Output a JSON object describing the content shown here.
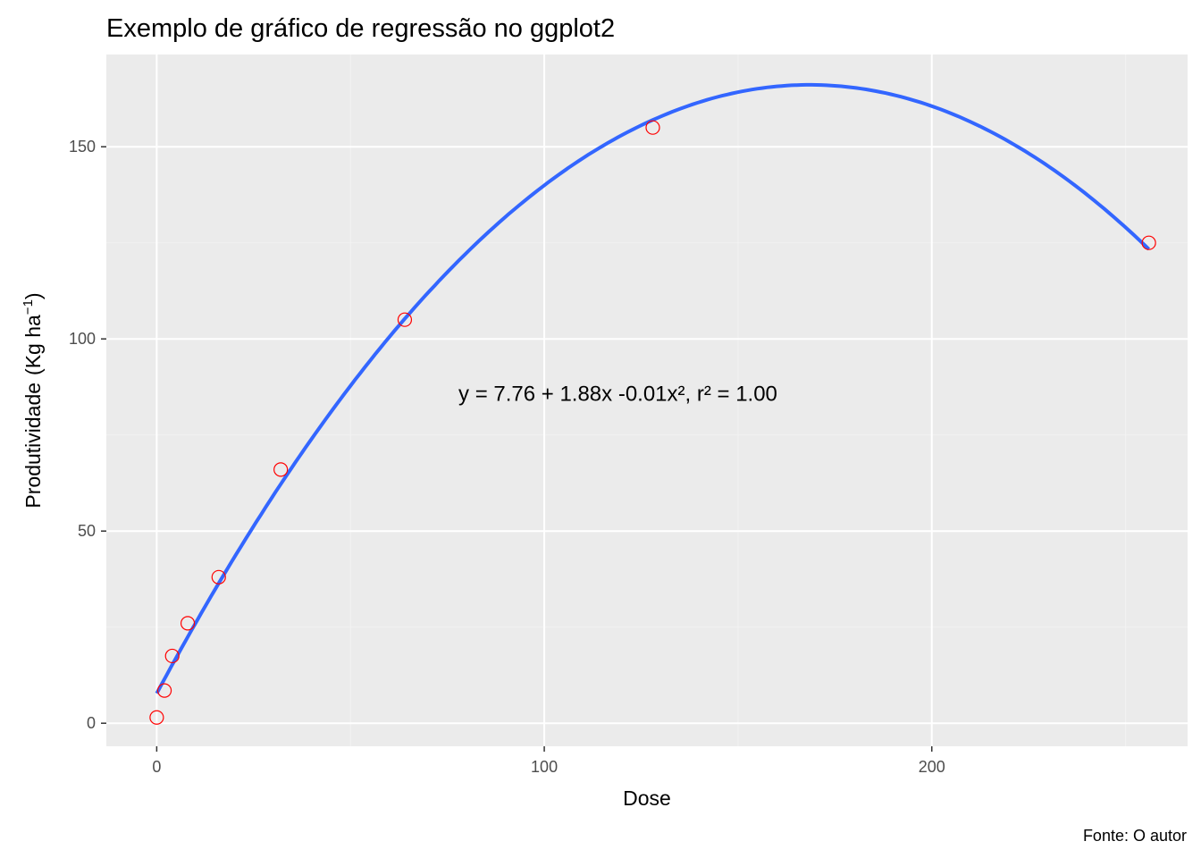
{
  "chart_data": {
    "type": "scatter",
    "title": "Exemplo de gráfico de regressão no ggplot2",
    "xlabel": "Dose",
    "ylabel": "Produtividade",
    "ylabel_unit": "(Kg ha",
    "ylabel_exponent": "−1",
    "ylabel_close": ")",
    "caption": "Fonte: O autor",
    "annotation": {
      "text": "y = 7.76 + 1.88x -0.01x², r² = 1.00",
      "x": 119,
      "y": 86
    },
    "xlim": [
      -13,
      266
    ],
    "ylim": [
      -6,
      174
    ],
    "x_ticks": [
      0,
      100,
      200
    ],
    "y_ticks": [
      0,
      50,
      100,
      150
    ],
    "x_minor": [
      50,
      150,
      250
    ],
    "y_minor": [
      25,
      75,
      125
    ],
    "grid": true,
    "points": [
      {
        "x": 0,
        "y": 1.5
      },
      {
        "x": 2,
        "y": 8.5
      },
      {
        "x": 4,
        "y": 17.5
      },
      {
        "x": 8,
        "y": 26
      },
      {
        "x": 16,
        "y": 38
      },
      {
        "x": 32,
        "y": 66
      },
      {
        "x": 64,
        "y": 105
      },
      {
        "x": 128,
        "y": 155
      },
      {
        "x": 256,
        "y": 125
      }
    ],
    "fit": {
      "method": "quadratic",
      "coefficients": [
        7.76,
        1.88,
        -0.00558
      ],
      "x_range": [
        0,
        256
      ]
    },
    "colors": {
      "panel": "#ebebeb",
      "grid_major": "#ffffff",
      "grid_minor": "#f2f2f2",
      "point_stroke": "#ff0000",
      "fit_line": "#3366ff",
      "tick_mark": "#333333"
    }
  }
}
